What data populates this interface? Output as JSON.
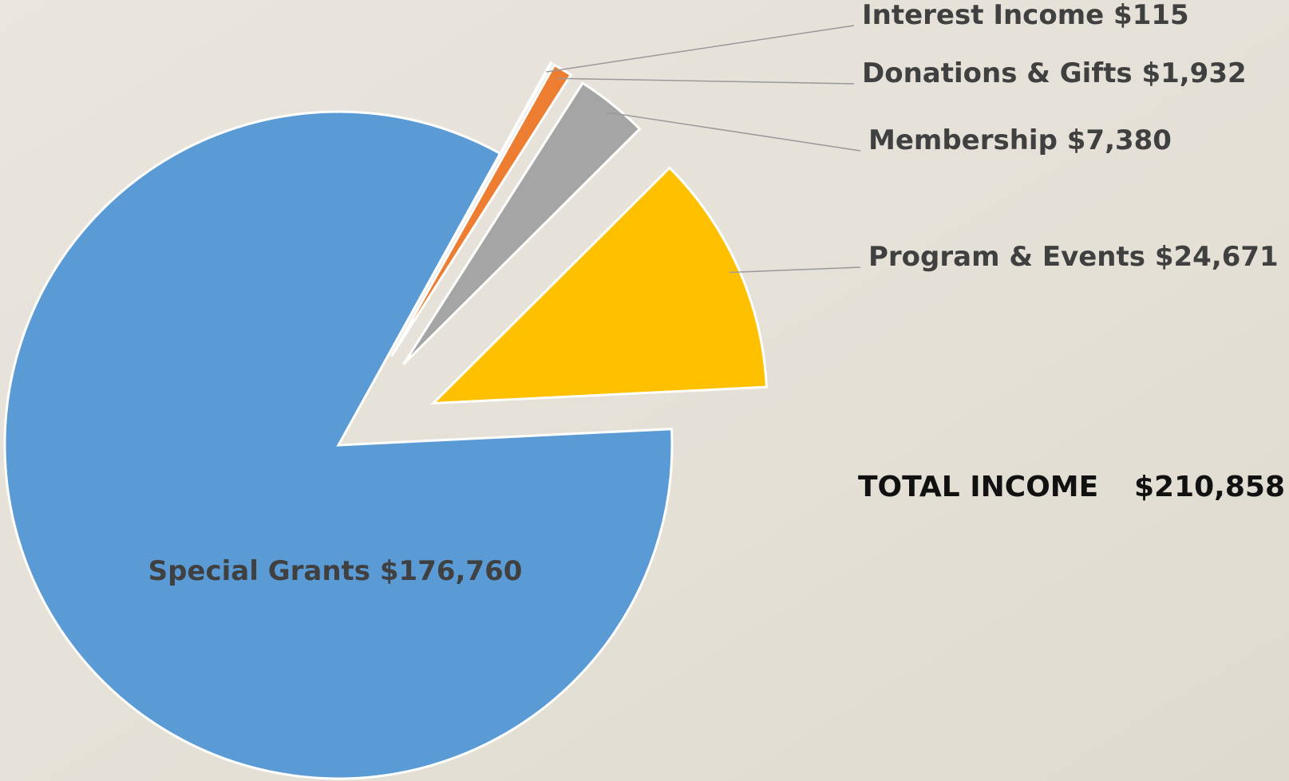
{
  "chart_data": {
    "type": "pie",
    "categories": [
      "Interest Income",
      "Donations & Gifts",
      "Membership",
      "Program & Events",
      "Special Grants"
    ],
    "values": [
      115,
      1932,
      7380,
      24671,
      176760
    ],
    "value_labels": [
      "$115",
      "$1,932",
      "$7,380",
      "$24,671",
      "$176,760"
    ],
    "colors": [
      "#bfbfbf",
      "#ed7d31",
      "#a5a5a5",
      "#ffc000",
      "#5b9bd5"
    ],
    "total_title": "TOTAL INCOME",
    "total": {
      "value": 210858,
      "label": "$210,858"
    }
  }
}
